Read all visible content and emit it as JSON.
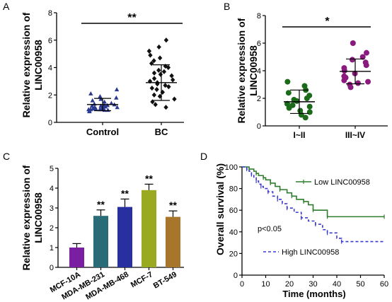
{
  "chart_data": [
    {
      "panel": "A",
      "type": "scatter",
      "ylabel": "Relative expression of LINC00958",
      "ylim": [
        0,
        8
      ],
      "yticks": [
        0,
        2,
        4,
        6,
        8
      ],
      "categories": [
        "Control",
        "BC"
      ],
      "significance": "**",
      "colors": {
        "Control": "#2b3a8f",
        "BC": "#111111"
      },
      "markers": {
        "Control": "triangle",
        "BC": "diamond"
      },
      "summary": [
        {
          "name": "Control",
          "mean": 1.3,
          "sd": 0.45
        },
        {
          "name": "BC",
          "mean": 2.9,
          "sd": 1.3
        }
      ],
      "points": {
        "Control": [
          1.0,
          0.9,
          0.95,
          1.1,
          1.2,
          1.05,
          0.85,
          1.3,
          1.15,
          0.95,
          1.0,
          1.4,
          1.25,
          0.8,
          1.1,
          1.35,
          0.9,
          1.2,
          1.5,
          1.05,
          1.6,
          0.95,
          1.8,
          1.1,
          2.1,
          1.7,
          2.4,
          1.0,
          1.9,
          1.25
        ],
        "BC": [
          1.1,
          1.3,
          1.5,
          1.7,
          1.9,
          2.0,
          2.2,
          2.4,
          2.5,
          2.6,
          2.8,
          2.9,
          3.0,
          3.1,
          3.2,
          3.4,
          3.5,
          3.6,
          3.7,
          3.8,
          4.0,
          4.1,
          4.3,
          4.5,
          4.7,
          4.9,
          5.2,
          5.5,
          6.0,
          2.7
        ]
      }
    },
    {
      "panel": "B",
      "type": "scatter",
      "ylabel": "Relative expression of LINC00958",
      "ylim": [
        0,
        8
      ],
      "yticks": [
        0,
        2,
        4,
        6,
        8
      ],
      "categories": [
        "I~II",
        "III~IV"
      ],
      "significance": "*",
      "colors": {
        "I~II": "#1a6a1a",
        "III~IV": "#8a1a7e"
      },
      "summary": [
        {
          "name": "I~II",
          "mean": 1.75,
          "sd": 0.85
        },
        {
          "name": "III~IV",
          "mean": 3.95,
          "sd": 0.9
        }
      ],
      "points": {
        "I~II": [
          0.6,
          0.8,
          1.0,
          1.1,
          1.3,
          1.4,
          1.5,
          1.6,
          1.8,
          1.9,
          2.0,
          2.2,
          2.4,
          2.6,
          2.9,
          3.2
        ],
        "III~IV": [
          2.8,
          3.0,
          3.1,
          3.2,
          3.3,
          3.5,
          3.6,
          3.8,
          4.0,
          4.2,
          4.4,
          4.6,
          4.8,
          5.0,
          5.3,
          6.0
        ]
      }
    },
    {
      "panel": "C",
      "type": "bar",
      "ylabel": "Relative expression of LINC00958",
      "ylim": [
        0,
        5
      ],
      "yticks": [
        0,
        1,
        2,
        3,
        4,
        5
      ],
      "categories": [
        "MCF-10A",
        "MDA-MB-231",
        "MDA-MB-468",
        "MCF-7",
        "BT-549"
      ],
      "values": [
        1.0,
        2.6,
        3.05,
        3.9,
        2.55
      ],
      "errors": [
        0.2,
        0.3,
        0.4,
        0.3,
        0.3
      ],
      "annotations": [
        "",
        "**",
        "**",
        "**",
        "**"
      ],
      "colors": [
        "#7b1fa2",
        "#2a6b78",
        "#2830a0",
        "#9aaa20",
        "#a8762a"
      ]
    },
    {
      "panel": "D",
      "type": "line",
      "xlabel": "Time (months)",
      "ylabel": "Overall survival (%)",
      "xlim": [
        0,
        60
      ],
      "ylim": [
        0,
        100
      ],
      "xticks": [
        0,
        10,
        20,
        30,
        40,
        50,
        60
      ],
      "yticks": [
        0,
        20,
        40,
        60,
        80,
        100
      ],
      "annotation": "p<0.05",
      "series": [
        {
          "name": "Low LINC00958",
          "color": "#2e7d2e",
          "dash": false,
          "x": [
            0,
            3,
            5,
            6,
            7,
            9,
            10,
            12,
            14,
            16,
            19,
            21,
            23,
            26,
            28,
            30,
            33,
            36,
            40,
            60
          ],
          "y": [
            100,
            98,
            96,
            94,
            92,
            90,
            88,
            85,
            82,
            79,
            76,
            73,
            70,
            68,
            65,
            60,
            60,
            54,
            54,
            54
          ]
        },
        {
          "name": "High LINC00958",
          "color": "#3a3acf",
          "dash": true,
          "x": [
            0,
            2,
            3,
            4,
            5,
            6,
            7,
            8,
            9,
            11,
            13,
            15,
            17,
            19,
            22,
            25,
            28,
            31,
            34,
            36,
            40,
            42,
            60
          ],
          "y": [
            100,
            98,
            96,
            93,
            90,
            87,
            84,
            82,
            80,
            77,
            73,
            70,
            66,
            62,
            58,
            53,
            50,
            47,
            42,
            39,
            34,
            31,
            31
          ]
        }
      ]
    }
  ],
  "panel_labels": [
    "A",
    "B",
    "C",
    "D"
  ],
  "text": {
    "ylabel_A_line1": "Relative expression of",
    "ylabel_A_line2": "LINC00958",
    "ylabel_B_line1": "Relative expression of",
    "ylabel_B_line2": "LINC00958",
    "ylabel_C_line1": "Relative expression of",
    "ylabel_C_line2": "LINC00958"
  }
}
